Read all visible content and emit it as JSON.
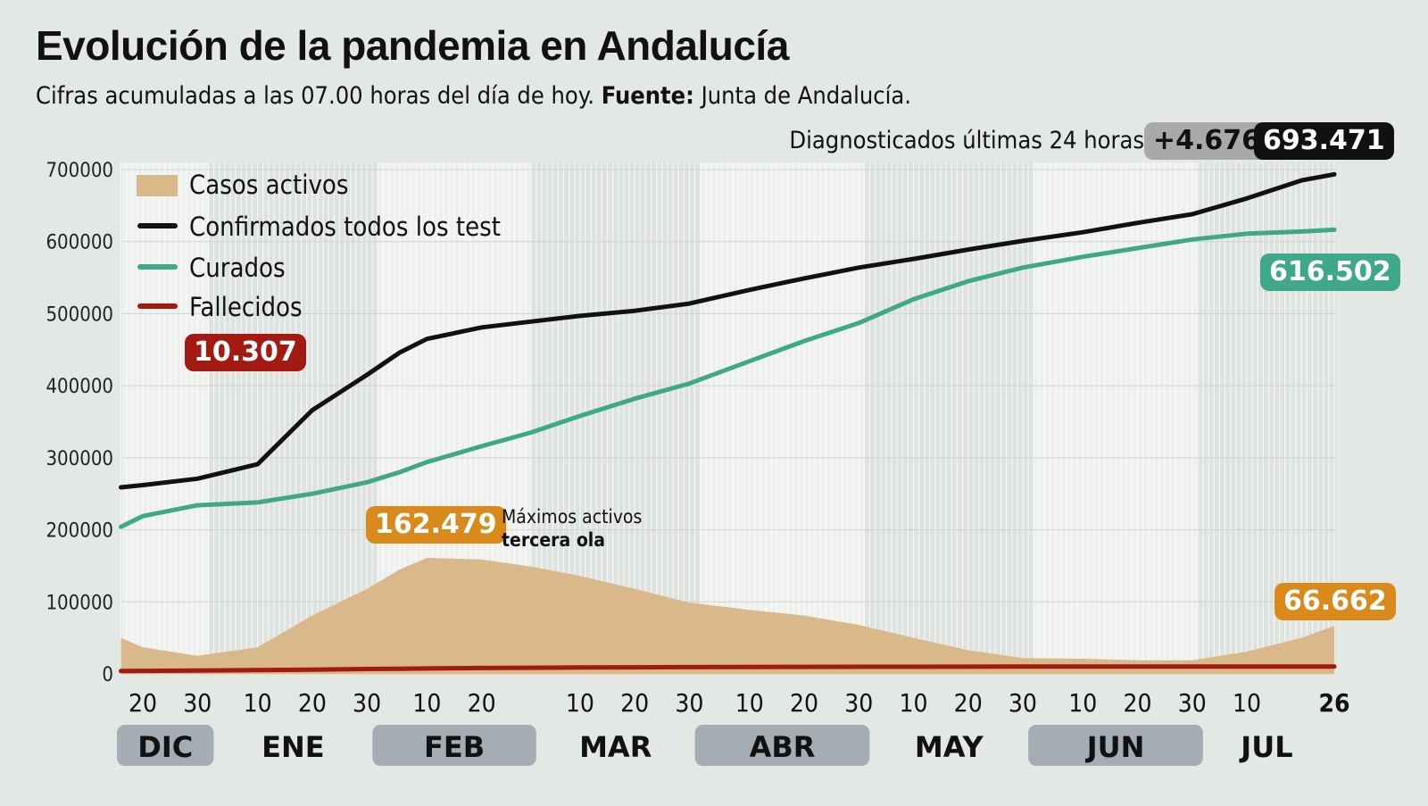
{
  "title": "Evolución de la pandemia en Andalucía",
  "subtitle": {
    "text": "Cifras acumuladas a las 07.00 horas del día de hoy.",
    "source_label": "Fuente:",
    "source": "Junta de Andalucía."
  },
  "header_stats": {
    "label": "Diagnosticados últimas 24 horas",
    "delta": "+4.676",
    "total": "693.471"
  },
  "colors": {
    "background": "#e4e8e5",
    "confirmados": "#111111",
    "curados": "#3fa88a",
    "fallecidos": "#a31a12",
    "activos": "#d9b98a",
    "activos_label": "#d98a1a",
    "month_pill": "#a3adb3"
  },
  "chart_data": {
    "type": "line",
    "ylim": [
      0,
      700000
    ],
    "yticks": [
      "0",
      "100000",
      "200000",
      "300000",
      "400000",
      "500000",
      "600000",
      "700000"
    ],
    "xticks": [
      {
        "date": "12-20",
        "label": "20"
      },
      {
        "date": "12-30",
        "label": "30"
      },
      {
        "date": "01-10",
        "label": "10"
      },
      {
        "date": "01-20",
        "label": "20"
      },
      {
        "date": "01-30",
        "label": "30"
      },
      {
        "date": "02-10",
        "label": "10"
      },
      {
        "date": "02-20",
        "label": "20"
      },
      {
        "date": "03-10",
        "label": "10"
      },
      {
        "date": "03-20",
        "label": "20"
      },
      {
        "date": "03-30",
        "label": "30"
      },
      {
        "date": "04-10",
        "label": "10"
      },
      {
        "date": "04-20",
        "label": "20"
      },
      {
        "date": "04-30",
        "label": "30"
      },
      {
        "date": "05-10",
        "label": "10"
      },
      {
        "date": "05-20",
        "label": "20"
      },
      {
        "date": "05-30",
        "label": "30"
      },
      {
        "date": "06-10",
        "label": "10"
      },
      {
        "date": "06-20",
        "label": "20"
      },
      {
        "date": "06-30",
        "label": "30"
      },
      {
        "date": "07-10",
        "label": "10"
      },
      {
        "date": "07-26",
        "label": "26"
      }
    ],
    "months": [
      {
        "label": "DIC",
        "month": 12,
        "pill": true
      },
      {
        "label": "ENE",
        "month": 1,
        "pill": false
      },
      {
        "label": "FEB",
        "month": 2,
        "pill": true
      },
      {
        "label": "MAR",
        "month": 3,
        "pill": false
      },
      {
        "label": "ABR",
        "month": 4,
        "pill": true
      },
      {
        "label": "MAY",
        "month": 5,
        "pill": false
      },
      {
        "label": "JUN",
        "month": 6,
        "pill": true
      },
      {
        "label": "JUL",
        "month": 7,
        "pill": false
      }
    ],
    "x": [
      "12-16",
      "12-20",
      "12-30",
      "01-10",
      "01-20",
      "01-30",
      "02-05",
      "02-10",
      "02-20",
      "03-01",
      "03-10",
      "03-20",
      "03-30",
      "04-10",
      "04-20",
      "04-30",
      "05-10",
      "05-20",
      "05-30",
      "06-10",
      "06-20",
      "06-30",
      "07-10",
      "07-20",
      "07-26"
    ],
    "series": [
      {
        "name": "Casos activos",
        "type": "area",
        "values": [
          50000,
          37000,
          25000,
          37000,
          81000,
          118000,
          145000,
          161000,
          159000,
          149000,
          136000,
          118000,
          99000,
          89000,
          81000,
          68000,
          50000,
          33000,
          22000,
          21000,
          19000,
          19000,
          31000,
          50000,
          66662
        ]
      },
      {
        "name": "Confirmados todos los test",
        "values": [
          259000,
          262000,
          271000,
          291000,
          366000,
          415000,
          446000,
          465000,
          481000,
          489000,
          497000,
          504000,
          514000,
          533000,
          549000,
          564000,
          576000,
          589000,
          601000,
          613000,
          626000,
          638000,
          660000,
          685000,
          693471
        ]
      },
      {
        "name": "Curados",
        "values": [
          204000,
          219000,
          234000,
          238000,
          250000,
          266000,
          280000,
          294000,
          316000,
          335000,
          358000,
          382000,
          403000,
          434000,
          462000,
          487000,
          520000,
          545000,
          564000,
          579000,
          591000,
          603000,
          611000,
          614000,
          616502
        ]
      },
      {
        "name": "Fallecidos",
        "values": [
          4000,
          4200,
          4600,
          5200,
          6000,
          6800,
          7200,
          7600,
          8200,
          8600,
          8900,
          9200,
          9400,
          9600,
          9750,
          9850,
          9950,
          10050,
          10100,
          10150,
          10180,
          10210,
          10240,
          10280,
          10307
        ]
      }
    ],
    "annotations": [
      {
        "text": "162.479",
        "series": "Casos activos"
      },
      {
        "text": "Máximos activos",
        "bold_text": "tercera ola"
      },
      {
        "text": "10.307",
        "series": "Fallecidos"
      },
      {
        "text": "616.502",
        "series": "Curados"
      },
      {
        "text": "66.662",
        "series": "Casos activos"
      }
    ],
    "legend": "top-left"
  }
}
